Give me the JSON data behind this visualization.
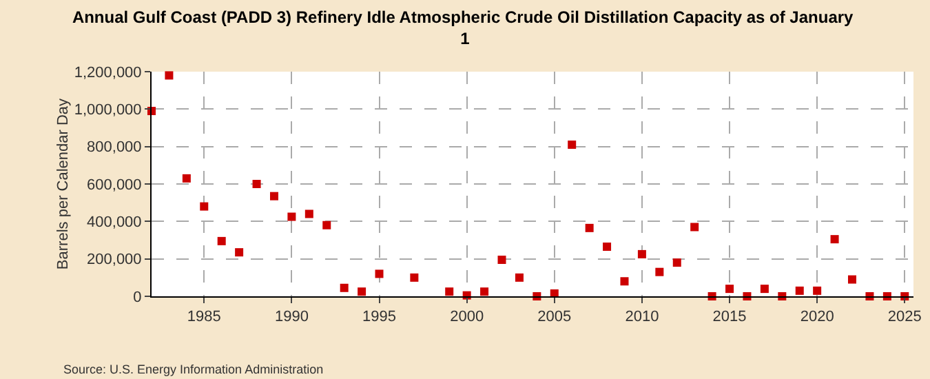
{
  "chart_data": {
    "type": "scatter",
    "title": "Annual Gulf Coast (PADD 3) Refinery Idle Atmospheric Crude Oil Distillation Capacity as of January  1",
    "ylabel": "Barrels per Calendar Day",
    "annotations": [
      "Source: U.S. Energy Information Administration"
    ],
    "x": [
      1982,
      1983,
      1984,
      1985,
      1986,
      1987,
      1988,
      1989,
      1990,
      1991,
      1992,
      1993,
      1994,
      1995,
      1997,
      1999,
      2000,
      2001,
      2002,
      2003,
      2004,
      2005,
      2006,
      2007,
      2008,
      2009,
      2010,
      2011,
      2012,
      2013,
      2014,
      2015,
      2016,
      2017,
      2018,
      2019,
      2020,
      2021,
      2022,
      2023,
      2024,
      2025
    ],
    "series": [
      {
        "color": "#cc0000",
        "values": [
          990000,
          1180000,
          630000,
          480000,
          295000,
          235000,
          600000,
          535000,
          425000,
          440000,
          380000,
          45000,
          25000,
          120000,
          100000,
          25000,
          5000,
          25000,
          195000,
          100000,
          0,
          15000,
          810000,
          365000,
          265000,
          80000,
          225000,
          130000,
          180000,
          370000,
          0,
          40000,
          0,
          40000,
          0,
          30000,
          30000,
          305000,
          90000,
          0,
          0,
          0
        ]
      }
    ],
    "xlim": [
      1982,
      2025.5
    ],
    "xticks": [
      1985,
      1990,
      1995,
      2000,
      2005,
      2010,
      2015,
      2020,
      2025
    ],
    "ylim": [
      0,
      1200000
    ],
    "yticks": [
      {
        "value": 0,
        "label": "0"
      },
      {
        "value": 200000,
        "label": "200,000"
      },
      {
        "value": 400000,
        "label": "400,000"
      },
      {
        "value": 600000,
        "label": "600,000"
      },
      {
        "value": 800000,
        "label": "800,000"
      },
      {
        "value": 1000000,
        "label": "1,000,000"
      },
      {
        "value": 1200000,
        "label": "1,200,000"
      }
    ],
    "grid": true,
    "marker": "square"
  }
}
